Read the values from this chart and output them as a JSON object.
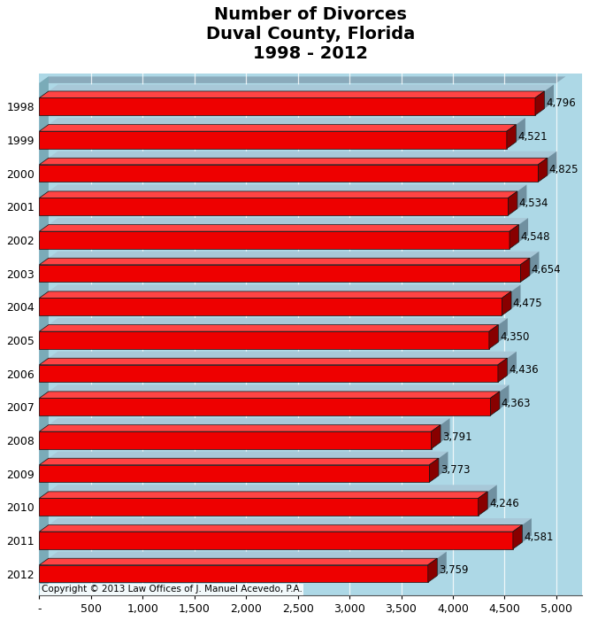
{
  "title": "Number of Divorces\nDuval County, Florida\n1998 - 2012",
  "years": [
    "1998",
    "1999",
    "2000",
    "2001",
    "2002",
    "2003",
    "2004",
    "2005",
    "2006",
    "2007",
    "2008",
    "2009",
    "2010",
    "2011",
    "2012"
  ],
  "values": [
    4796,
    4521,
    4825,
    4534,
    4548,
    4654,
    4475,
    4350,
    4436,
    4363,
    3791,
    3773,
    4246,
    4581,
    3759
  ],
  "col_front": "#EE0000",
  "col_top": "#FF4444",
  "col_side": "#880000",
  "col_shadow_face": "#A8C8D8",
  "col_shadow_side": "#7090A0",
  "col_wall": "#8aaabb",
  "col_bg": "#ADD8E6",
  "col_left_wall": "#7aabb8",
  "xlim_max": 5000,
  "xticks": [
    0,
    500,
    1000,
    1500,
    2000,
    2500,
    3000,
    3500,
    4000,
    4500,
    5000
  ],
  "xtick_labels": [
    "-",
    "500",
    "1,000",
    "1,500",
    "2,000",
    "2,500",
    "3,000",
    "3,500",
    "4,000",
    "4,500",
    "5,000"
  ],
  "title_fontsize": 14,
  "tick_fontsize": 9,
  "value_fontsize": 8.5,
  "copyright_text": "Copyright © 2013 Law Offices of J. Manuel Acevedo, P.A.",
  "bar_height": 0.52,
  "ddx": 90,
  "ddy": 0.2
}
